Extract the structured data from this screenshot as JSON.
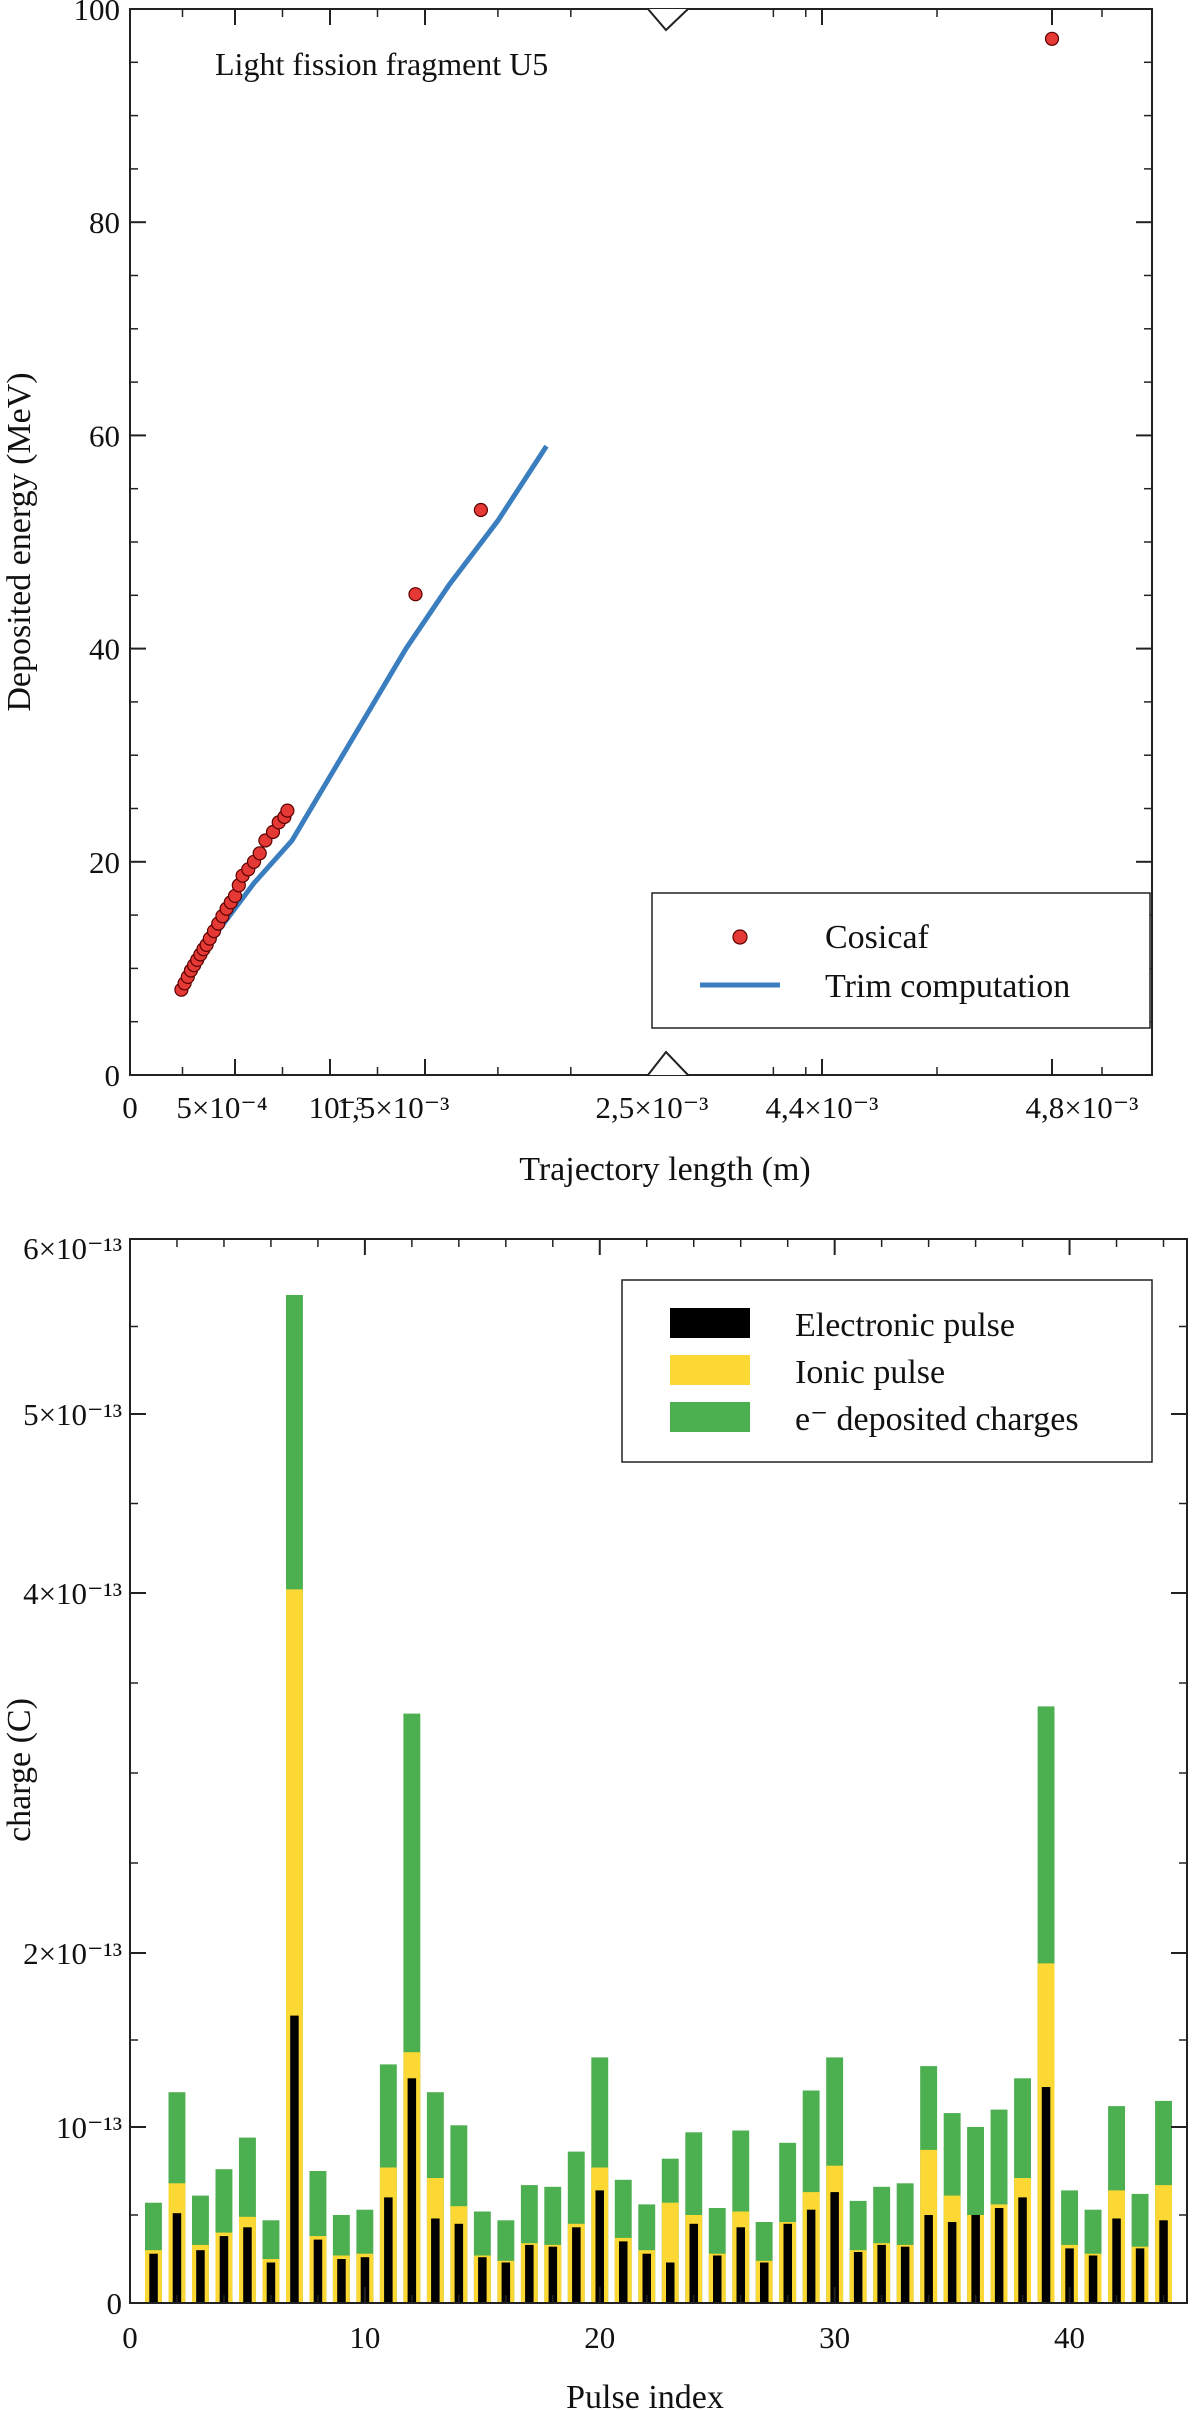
{
  "chart_data": [
    {
      "type": "scatter",
      "annotation": "Light fission fragment U5",
      "xlabel": "Trajectory length (m)",
      "ylabel": "Deposited energy (MeV)",
      "ylim": [
        0,
        100
      ],
      "x_scale": "broken-axis",
      "x_tick_labels": [
        "0",
        "5×10⁻⁴",
        "10⁻³",
        "1,5×10⁻³",
        "2,5×10⁻³",
        "4,4×10⁻³",
        "4,8×10⁻³"
      ],
      "y_ticks": [
        0,
        20,
        40,
        60,
        80,
        100
      ],
      "grid": false,
      "legend_position": "bottom-right",
      "series": [
        {
          "name": "Cosicaf",
          "kind": "points",
          "color": "#e53935",
          "x": [
            0.000245,
            0.00026,
            0.000275,
            0.00029,
            0.000305,
            0.00032,
            0.000335,
            0.00035,
            0.000365,
            0.00038,
            0.0004,
            0.00042,
            0.00044,
            0.00046,
            0.00048,
            0.0005,
            0.00052,
            0.00054,
            0.00057,
            0.0006,
            0.00063,
            0.00066,
            0.0007,
            0.00073,
            0.00076,
            0.000776,
            0.00145,
            0.00173,
            0.0048
          ],
          "y": [
            8.0,
            8.6,
            9.2,
            9.8,
            10.3,
            10.8,
            11.3,
            11.8,
            12.2,
            12.8,
            13.5,
            14.2,
            14.9,
            15.6,
            16.2,
            16.8,
            17.8,
            18.7,
            19.3,
            20.0,
            20.8,
            22.0,
            22.8,
            23.7,
            24.2,
            24.8,
            45.1,
            53.0,
            97.2
          ]
        },
        {
          "name": "Trim computation",
          "kind": "line",
          "color": "#3a7ebf",
          "x": [
            0.00024,
            0.0004,
            0.0006,
            0.0008,
            0.001,
            0.0012,
            0.0014,
            0.0016,
            0.0018,
            0.002
          ],
          "y": [
            8.0,
            13.0,
            18.0,
            22.0,
            28.0,
            34.0,
            40.0,
            46.0,
            52.0,
            59.0
          ]
        }
      ]
    },
    {
      "type": "bar",
      "stacked": true,
      "xlabel": "Pulse index",
      "ylabel": "charge (C)",
      "xlim": [
        0,
        45
      ],
      "x_ticks": [
        0,
        10,
        20,
        30,
        40
      ],
      "y_tick_labels": [
        "0",
        "10⁻¹³",
        "2×10⁻¹³",
        "4×10⁻¹³",
        "5×10⁻¹³",
        "6×10⁻¹³"
      ],
      "grid": false,
      "legend_position": "top-right",
      "categories": [
        1,
        2,
        3,
        4,
        5,
        6,
        7,
        8,
        9,
        10,
        11,
        12,
        13,
        14,
        15,
        16,
        17,
        18,
        19,
        20,
        21,
        22,
        23,
        24,
        25,
        26,
        27,
        28,
        29,
        30,
        31,
        32,
        33,
        34,
        35,
        36,
        37,
        38,
        39,
        40,
        41,
        42,
        43,
        44
      ],
      "series": [
        {
          "name": "Electronic pulse",
          "color": "#000000",
          "values": [
            0.28,
            0.51,
            0.3,
            0.38,
            0.43,
            0.23,
            1.64,
            0.36,
            0.25,
            0.26,
            0.6,
            1.28,
            0.48,
            0.45,
            0.26,
            0.23,
            0.33,
            0.32,
            0.43,
            0.64,
            0.35,
            0.28,
            0.23,
            0.45,
            0.27,
            0.43,
            0.23,
            0.45,
            0.53,
            0.63,
            0.29,
            0.33,
            0.32,
            0.5,
            0.46,
            0.5,
            0.54,
            0.6,
            1.23,
            0.31,
            0.27,
            0.48,
            0.31,
            0.47
          ]
        },
        {
          "name": "Ionic pulse",
          "color": "#fcd835",
          "values": [
            0.3,
            0.68,
            0.33,
            0.4,
            0.49,
            0.25,
            4.02,
            0.38,
            0.27,
            0.28,
            0.77,
            1.43,
            0.71,
            0.55,
            0.27,
            0.24,
            0.34,
            0.33,
            0.45,
            0.77,
            0.37,
            0.3,
            0.57,
            0.5,
            0.28,
            0.52,
            0.24,
            0.46,
            0.63,
            0.78,
            0.3,
            0.34,
            0.33,
            0.87,
            0.61,
            0.5,
            0.56,
            0.71,
            1.94,
            0.33,
            0.28,
            0.64,
            0.32,
            0.67
          ]
        },
        {
          "name": "e⁻ deposited charges",
          "color": "#4caf50",
          "values": [
            0.57,
            1.2,
            0.61,
            0.76,
            0.94,
            0.47,
            5.68,
            0.75,
            0.5,
            0.53,
            1.36,
            3.33,
            1.2,
            1.01,
            0.52,
            0.47,
            0.67,
            0.66,
            0.86,
            1.4,
            0.7,
            0.56,
            0.82,
            0.97,
            0.54,
            0.98,
            0.46,
            0.91,
            1.21,
            1.4,
            0.58,
            0.66,
            0.68,
            1.35,
            1.08,
            1.0,
            1.1,
            1.28,
            3.37,
            0.64,
            0.53,
            1.12,
            0.62,
            1.15
          ]
        }
      ]
    }
  ]
}
